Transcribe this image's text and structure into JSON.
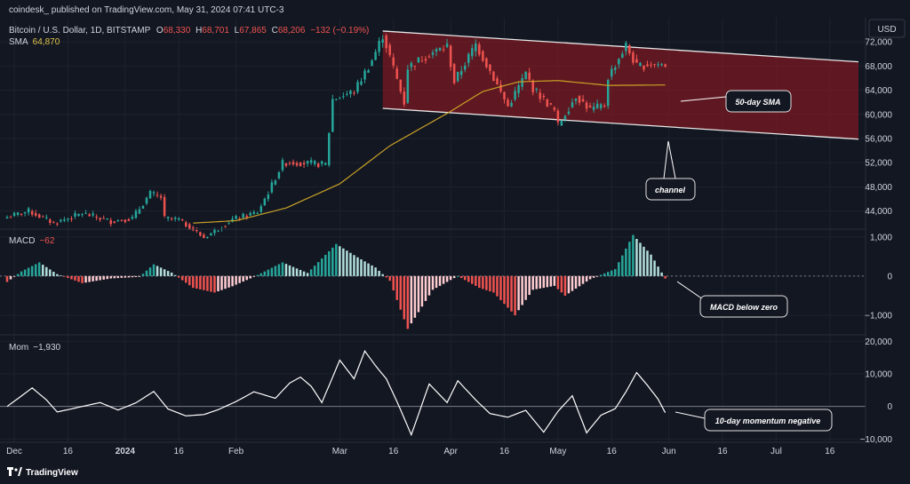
{
  "header": {
    "published": "coindesk_ published on TradingView.com, May 31, 2024 07:41 UTC-3",
    "symbol": "Bitcoin / U.S. Dollar, 1D, BITSTAMP",
    "ohlc": {
      "o_label": "O",
      "o": "68,330",
      "h_label": "H",
      "h": "68,701",
      "l_label": "L",
      "l": "67,865",
      "c_label": "C",
      "c": "68,206",
      "chg": "−132 (−0.19%)"
    },
    "sma_label": "SMA",
    "sma_value": "64,870",
    "currency": "USD"
  },
  "colors": {
    "up": "#26a69a",
    "down": "#ef5350",
    "sma": "#c9a227",
    "channel_fill": "#7a1a22",
    "channel_line": "#e8e8e8",
    "macd_up_strong": "#26a69a",
    "macd_up_weak": "#b2dfdb",
    "macd_down_strong": "#ef5350",
    "macd_down_weak": "#ffcdd2",
    "momentum": "#ffffff",
    "background": "#131722"
  },
  "macd_legend": {
    "label": "MACD",
    "value": "−62"
  },
  "mom_legend": {
    "label": "Mom",
    "value": "−1,930"
  },
  "annotations": {
    "sma": "50-day SMA",
    "channel": "channel",
    "macd": "MACD below zero",
    "mom": "10-day momentum negative"
  },
  "footer": {
    "logo_text": "TradingView"
  },
  "chart_data": [
    {
      "type": "candlestick",
      "title": "Bitcoin / U.S. Dollar, 1D, BITSTAMP",
      "x_range": [
        "2023-11-29",
        "2024-07-24"
      ],
      "xticks": [
        {
          "date": "2023-12-01",
          "label": "Dec",
          "bold": false
        },
        {
          "date": "2023-12-16",
          "label": "16",
          "bold": false
        },
        {
          "date": "2024-01-01",
          "label": "2024",
          "bold": true
        },
        {
          "date": "2024-01-16",
          "label": "16",
          "bold": false
        },
        {
          "date": "2024-02-01",
          "label": "Feb",
          "bold": false
        },
        {
          "date": "2024-03-01",
          "label": "Mar",
          "bold": false
        },
        {
          "date": "2024-03-16",
          "label": "16",
          "bold": false
        },
        {
          "date": "2024-04-01",
          "label": "Apr",
          "bold": false
        },
        {
          "date": "2024-04-16",
          "label": "16",
          "bold": false
        },
        {
          "date": "2024-05-01",
          "label": "May",
          "bold": false
        },
        {
          "date": "2024-05-16",
          "label": "16",
          "bold": false
        },
        {
          "date": "2024-06-01",
          "label": "Jun",
          "bold": false
        },
        {
          "date": "2024-06-16",
          "label": "16",
          "bold": false
        },
        {
          "date": "2024-07-01",
          "label": "Jul",
          "bold": false
        },
        {
          "date": "2024-07-16",
          "label": "16",
          "bold": false
        }
      ],
      "ylim": [
        41000,
        76000
      ],
      "yticks": [
        {
          "v": 44000,
          "label": "44,000"
        },
        {
          "v": 48000,
          "label": "48,000"
        },
        {
          "v": 52000,
          "label": "52,000"
        },
        {
          "v": 56000,
          "label": "56,000"
        },
        {
          "v": 60000,
          "label": "60,000"
        },
        {
          "v": 64000,
          "label": "64,000"
        },
        {
          "v": 68000,
          "label": "68,000"
        },
        {
          "v": 72000,
          "label": "72,000"
        }
      ],
      "close_anchors": [
        [
          "2023-11-29",
          43000
        ],
        [
          "2023-12-05",
          44000
        ],
        [
          "2023-12-12",
          42000
        ],
        [
          "2023-12-20",
          43600
        ],
        [
          "2023-12-28",
          42300
        ],
        [
          "2024-01-03",
          42800
        ],
        [
          "2024-01-08",
          46900
        ],
        [
          "2024-01-11",
          46300
        ],
        [
          "2024-01-12",
          42800
        ],
        [
          "2024-01-16",
          42600
        ],
        [
          "2024-01-23",
          39600
        ],
        [
          "2024-01-31",
          42600
        ],
        [
          "2024-02-07",
          43800
        ],
        [
          "2024-02-10",
          47100
        ],
        [
          "2024-02-14",
          51900
        ],
        [
          "2024-02-16",
          52100
        ],
        [
          "2024-02-26",
          51700
        ],
        [
          "2024-02-28",
          62500
        ],
        [
          "2024-03-05",
          63800
        ],
        [
          "2024-03-10",
          69000
        ],
        [
          "2024-03-13",
          73100
        ],
        [
          "2024-03-14",
          71400
        ],
        [
          "2024-03-19",
          62000
        ],
        [
          "2024-03-20",
          67800
        ],
        [
          "2024-03-26",
          70000
        ],
        [
          "2024-03-31",
          71300
        ],
        [
          "2024-04-02",
          65400
        ],
        [
          "2024-04-08",
          71600
        ],
        [
          "2024-04-12",
          67200
        ],
        [
          "2024-04-17",
          61300
        ],
        [
          "2024-04-22",
          66800
        ],
        [
          "2024-04-24",
          64300
        ],
        [
          "2024-04-30",
          60600
        ],
        [
          "2024-05-01",
          58200
        ],
        [
          "2024-05-06",
          63100
        ],
        [
          "2024-05-10",
          60800
        ],
        [
          "2024-05-14",
          61500
        ],
        [
          "2024-05-15",
          66200
        ],
        [
          "2024-05-20",
          71400
        ],
        [
          "2024-05-23",
          67900
        ],
        [
          "2024-05-27",
          68400
        ],
        [
          "2024-05-31",
          68206
        ]
      ],
      "sma_anchors": [
        [
          "2024-01-20",
          42000
        ],
        [
          "2024-02-01",
          42400
        ],
        [
          "2024-02-15",
          44500
        ],
        [
          "2024-03-01",
          48500
        ],
        [
          "2024-03-15",
          54800
        ],
        [
          "2024-04-01",
          60500
        ],
        [
          "2024-04-10",
          63800
        ],
        [
          "2024-04-20",
          65400
        ],
        [
          "2024-05-01",
          65600
        ],
        [
          "2024-05-15",
          64800
        ],
        [
          "2024-05-31",
          64870
        ]
      ],
      "channel": {
        "upper": [
          [
            "2024-03-13",
            73800
          ],
          [
            "2024-07-24",
            68700
          ]
        ],
        "lower": [
          [
            "2024-03-13",
            61000
          ],
          [
            "2024-07-24",
            55900
          ]
        ]
      }
    },
    {
      "type": "bar",
      "name": "MACD",
      "ylim": [
        -1500,
        1200
      ],
      "yticks": [
        {
          "v": 1000,
          "label": "1,000"
        },
        {
          "v": 0,
          "label": "0"
        },
        {
          "v": -1000,
          "label": "−1,000"
        }
      ],
      "anchors": [
        [
          "2023-11-29",
          -150
        ],
        [
          "2023-12-03",
          120
        ],
        [
          "2023-12-08",
          350
        ],
        [
          "2023-12-13",
          50
        ],
        [
          "2023-12-20",
          -180
        ],
        [
          "2023-12-28",
          -60
        ],
        [
          "2024-01-05",
          -20
        ],
        [
          "2024-01-09",
          300
        ],
        [
          "2024-01-14",
          90
        ],
        [
          "2024-01-20",
          -300
        ],
        [
          "2024-01-26",
          -420
        ],
        [
          "2024-01-31",
          -260
        ],
        [
          "2024-02-06",
          -20
        ],
        [
          "2024-02-14",
          350
        ],
        [
          "2024-02-21",
          80
        ],
        [
          "2024-02-29",
          820
        ],
        [
          "2024-03-06",
          480
        ],
        [
          "2024-03-11",
          220
        ],
        [
          "2024-03-15",
          -120
        ],
        [
          "2024-03-20",
          -1350
        ],
        [
          "2024-03-27",
          -350
        ],
        [
          "2024-04-03",
          0
        ],
        [
          "2024-04-09",
          -300
        ],
        [
          "2024-04-13",
          -420
        ],
        [
          "2024-04-19",
          -1000
        ],
        [
          "2024-04-24",
          -350
        ],
        [
          "2024-04-30",
          -250
        ],
        [
          "2024-05-03",
          -500
        ],
        [
          "2024-05-10",
          -80
        ],
        [
          "2024-05-17",
          180
        ],
        [
          "2024-05-22",
          1050
        ],
        [
          "2024-05-27",
          550
        ],
        [
          "2024-05-31",
          -62
        ]
      ]
    },
    {
      "type": "line",
      "name": "Mom",
      "ylim": [
        -11000,
        22000
      ],
      "yticks": [
        {
          "v": 20000,
          "label": "20,000"
        },
        {
          "v": 10000,
          "label": "10,000"
        },
        {
          "v": 0,
          "label": "0"
        },
        {
          "v": -10000,
          "label": "−10,000"
        }
      ],
      "anchors": [
        [
          "2023-11-29",
          0
        ],
        [
          "2023-12-03",
          3200
        ],
        [
          "2023-12-06",
          5700
        ],
        [
          "2023-12-10",
          2000
        ],
        [
          "2023-12-13",
          -1700
        ],
        [
          "2023-12-18",
          -500
        ],
        [
          "2023-12-25",
          1200
        ],
        [
          "2023-12-30",
          -1100
        ],
        [
          "2024-01-04",
          1100
        ],
        [
          "2024-01-09",
          4600
        ],
        [
          "2024-01-13",
          -800
        ],
        [
          "2024-01-18",
          -2900
        ],
        [
          "2024-01-23",
          -2500
        ],
        [
          "2024-01-27",
          -1000
        ],
        [
          "2024-02-01",
          1500
        ],
        [
          "2024-02-06",
          4500
        ],
        [
          "2024-02-12",
          2500
        ],
        [
          "2024-02-16",
          7200
        ],
        [
          "2024-02-19",
          9000
        ],
        [
          "2024-02-22",
          6200
        ],
        [
          "2024-02-25",
          1200
        ],
        [
          "2024-03-01",
          14200
        ],
        [
          "2024-03-05",
          8500
        ],
        [
          "2024-03-08",
          17000
        ],
        [
          "2024-03-11",
          12500
        ],
        [
          "2024-03-14",
          8500
        ],
        [
          "2024-03-17",
          1500
        ],
        [
          "2024-03-21",
          -8700
        ],
        [
          "2024-03-26",
          6900
        ],
        [
          "2024-03-31",
          1200
        ],
        [
          "2024-04-03",
          7900
        ],
        [
          "2024-04-08",
          2000
        ],
        [
          "2024-04-12",
          -2200
        ],
        [
          "2024-04-17",
          -3300
        ],
        [
          "2024-04-22",
          -1200
        ],
        [
          "2024-04-27",
          -7900
        ],
        [
          "2024-05-01",
          -1500
        ],
        [
          "2024-05-05",
          3300
        ],
        [
          "2024-05-09",
          -8100
        ],
        [
          "2024-05-13",
          -2700
        ],
        [
          "2024-05-17",
          -700
        ],
        [
          "2024-05-20",
          4500
        ],
        [
          "2024-05-23",
          10400
        ],
        [
          "2024-05-26",
          6500
        ],
        [
          "2024-05-29",
          2200
        ],
        [
          "2024-05-31",
          -1930
        ]
      ]
    }
  ]
}
